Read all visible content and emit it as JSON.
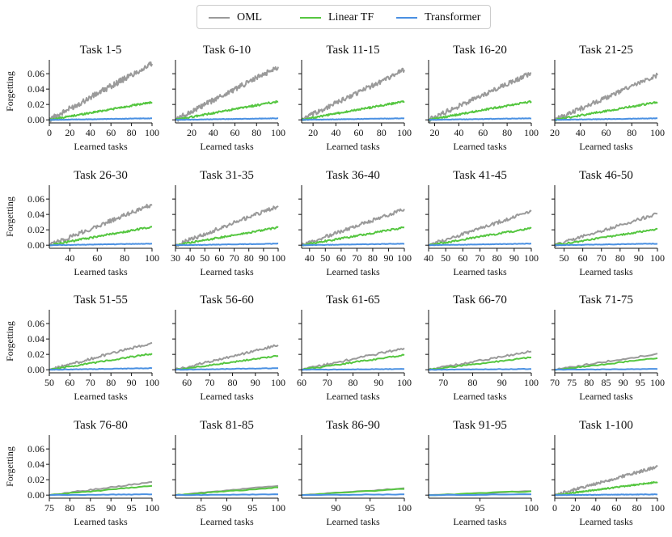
{
  "chart_data": {
    "type": "line",
    "layout": "4x5 grid of small-multiple line charts",
    "legend": {
      "position": "top-center",
      "entries": [
        {
          "name": "OML",
          "color": "#9a9a9a"
        },
        {
          "name": "Linear TF",
          "color": "#55c640"
        },
        {
          "name": "Transformer",
          "color": "#4a90e2"
        }
      ]
    },
    "shared_axes": {
      "xlabel": "Learned tasks",
      "ylabel": "Forgetting",
      "ylim": [
        -0.004,
        0.078
      ],
      "yticks": [
        0.0,
        0.02,
        0.04,
        0.06
      ],
      "ytick_labels": [
        "0.00",
        "0.02",
        "0.04",
        "0.06"
      ]
    },
    "panels": [
      {
        "title": "Task 1-5",
        "xlim": [
          0,
          100
        ],
        "xticks": [
          0,
          20,
          40,
          60,
          80,
          100
        ],
        "series": {
          "OML": {
            "start": 0,
            "end": 0.073
          },
          "Linear TF": {
            "start": 0,
            "end": 0.023
          },
          "Transformer": {
            "start": 0,
            "end": 0.002
          }
        }
      },
      {
        "title": "Task 6-10",
        "xlim": [
          5,
          100
        ],
        "xticks": [
          20,
          40,
          60,
          80,
          100
        ],
        "series": {
          "OML": {
            "start": 5,
            "end": 0.069
          },
          "Linear TF": {
            "start": 5,
            "end": 0.024
          },
          "Transformer": {
            "start": 5,
            "end": 0.002
          }
        }
      },
      {
        "title": "Task 11-15",
        "xlim": [
          10,
          100
        ],
        "xticks": [
          20,
          40,
          60,
          80,
          100
        ],
        "series": {
          "OML": {
            "start": 10,
            "end": 0.065
          },
          "Linear TF": {
            "start": 10,
            "end": 0.024
          },
          "Transformer": {
            "start": 10,
            "end": 0.002
          }
        }
      },
      {
        "title": "Task 16-20",
        "xlim": [
          15,
          100
        ],
        "xticks": [
          20,
          40,
          60,
          80,
          100
        ],
        "series": {
          "OML": {
            "start": 15,
            "end": 0.061
          },
          "Linear TF": {
            "start": 15,
            "end": 0.024
          },
          "Transformer": {
            "start": 15,
            "end": 0.002
          }
        }
      },
      {
        "title": "Task 21-25",
        "xlim": [
          20,
          100
        ],
        "xticks": [
          20,
          40,
          60,
          80,
          100
        ],
        "series": {
          "OML": {
            "start": 20,
            "end": 0.058
          },
          "Linear TF": {
            "start": 20,
            "end": 0.023
          },
          "Transformer": {
            "start": 20,
            "end": 0.002
          }
        }
      },
      {
        "title": "Task 26-30",
        "xlim": [
          25,
          100
        ],
        "xticks": [
          40,
          60,
          80,
          100
        ],
        "series": {
          "OML": {
            "start": 25,
            "end": 0.053
          },
          "Linear TF": {
            "start": 25,
            "end": 0.024
          },
          "Transformer": {
            "start": 25,
            "end": 0.002
          }
        }
      },
      {
        "title": "Task 31-35",
        "xlim": [
          30,
          100
        ],
        "xticks": [
          30,
          40,
          50,
          60,
          70,
          80,
          90,
          100
        ],
        "series": {
          "OML": {
            "start": 30,
            "end": 0.051
          },
          "Linear TF": {
            "start": 30,
            "end": 0.023
          },
          "Transformer": {
            "start": 30,
            "end": 0.002
          }
        }
      },
      {
        "title": "Task 36-40",
        "xlim": [
          35,
          100
        ],
        "xticks": [
          40,
          50,
          60,
          70,
          80,
          90,
          100
        ],
        "series": {
          "OML": {
            "start": 35,
            "end": 0.047
          },
          "Linear TF": {
            "start": 35,
            "end": 0.023
          },
          "Transformer": {
            "start": 35,
            "end": 0.002
          }
        }
      },
      {
        "title": "Task 41-45",
        "xlim": [
          40,
          100
        ],
        "xticks": [
          40,
          50,
          60,
          70,
          80,
          90,
          100
        ],
        "series": {
          "OML": {
            "start": 40,
            "end": 0.044
          },
          "Linear TF": {
            "start": 40,
            "end": 0.022
          },
          "Transformer": {
            "start": 40,
            "end": 0.002
          }
        }
      },
      {
        "title": "Task 46-50",
        "xlim": [
          45,
          100
        ],
        "xticks": [
          50,
          60,
          70,
          80,
          90,
          100
        ],
        "series": {
          "OML": {
            "start": 45,
            "end": 0.041
          },
          "Linear TF": {
            "start": 45,
            "end": 0.021
          },
          "Transformer": {
            "start": 45,
            "end": 0.002
          }
        }
      },
      {
        "title": "Task 51-55",
        "xlim": [
          50,
          100
        ],
        "xticks": [
          50,
          60,
          70,
          80,
          90,
          100
        ],
        "series": {
          "OML": {
            "start": 50,
            "end": 0.035
          },
          "Linear TF": {
            "start": 50,
            "end": 0.021
          },
          "Transformer": {
            "start": 50,
            "end": 0.002
          }
        }
      },
      {
        "title": "Task 56-60",
        "xlim": [
          55,
          100
        ],
        "xticks": [
          60,
          70,
          80,
          90,
          100
        ],
        "series": {
          "OML": {
            "start": 55,
            "end": 0.032
          },
          "Linear TF": {
            "start": 55,
            "end": 0.018
          },
          "Transformer": {
            "start": 55,
            "end": 0.002
          }
        }
      },
      {
        "title": "Task 61-65",
        "xlim": [
          60,
          100
        ],
        "xticks": [
          60,
          70,
          80,
          90,
          100
        ],
        "series": {
          "OML": {
            "start": 60,
            "end": 0.028
          },
          "Linear TF": {
            "start": 60,
            "end": 0.019
          },
          "Transformer": {
            "start": 60,
            "end": 0.001
          }
        }
      },
      {
        "title": "Task 66-70",
        "xlim": [
          65,
          100
        ],
        "xticks": [
          70,
          80,
          90,
          100
        ],
        "series": {
          "OML": {
            "start": 65,
            "end": 0.024
          },
          "Linear TF": {
            "start": 65,
            "end": 0.016
          },
          "Transformer": {
            "start": 65,
            "end": 0.001
          }
        }
      },
      {
        "title": "Task 71-75",
        "xlim": [
          70,
          100
        ],
        "xticks": [
          70,
          75,
          80,
          85,
          90,
          95,
          100
        ],
        "series": {
          "OML": {
            "start": 70,
            "end": 0.021
          },
          "Linear TF": {
            "start": 70,
            "end": 0.015
          },
          "Transformer": {
            "start": 70,
            "end": 0.001
          }
        }
      },
      {
        "title": "Task 76-80",
        "xlim": [
          75,
          100
        ],
        "xticks": [
          75,
          80,
          85,
          90,
          95,
          100
        ],
        "series": {
          "OML": {
            "start": 75,
            "end": 0.017
          },
          "Linear TF": {
            "start": 75,
            "end": 0.012
          },
          "Transformer": {
            "start": 75,
            "end": 0.001
          }
        }
      },
      {
        "title": "Task 81-85",
        "xlim": [
          80,
          100
        ],
        "xticks": [
          85,
          90,
          95,
          100
        ],
        "series": {
          "OML": {
            "start": 80,
            "end": 0.012
          },
          "Linear TF": {
            "start": 80,
            "end": 0.01
          },
          "Transformer": {
            "start": 80,
            "end": 0.001
          }
        }
      },
      {
        "title": "Task 86-90",
        "xlim": [
          85,
          100
        ],
        "xticks": [
          90,
          95,
          100
        ],
        "series": {
          "OML": {
            "start": 85,
            "end": 0.009
          },
          "Linear TF": {
            "start": 85,
            "end": 0.008
          },
          "Transformer": {
            "start": 85,
            "end": 0.001
          }
        }
      },
      {
        "title": "Task 91-95",
        "xlim": [
          90,
          100
        ],
        "xticks": [
          95,
          100
        ],
        "series": {
          "OML": {
            "start": 90,
            "end": 0.005
          },
          "Linear TF": {
            "start": 90,
            "end": 0.005
          },
          "Transformer": {
            "start": 90,
            "end": 0.001
          }
        }
      },
      {
        "title": "Task 1-100",
        "xlim": [
          0,
          100
        ],
        "xticks": [
          0,
          20,
          40,
          60,
          80,
          100
        ],
        "series": {
          "OML": {
            "start": 0,
            "end": 0.037
          },
          "Linear TF": {
            "start": 0,
            "end": 0.017
          },
          "Transformer": {
            "start": 0,
            "end": 0.001
          }
        }
      }
    ]
  }
}
